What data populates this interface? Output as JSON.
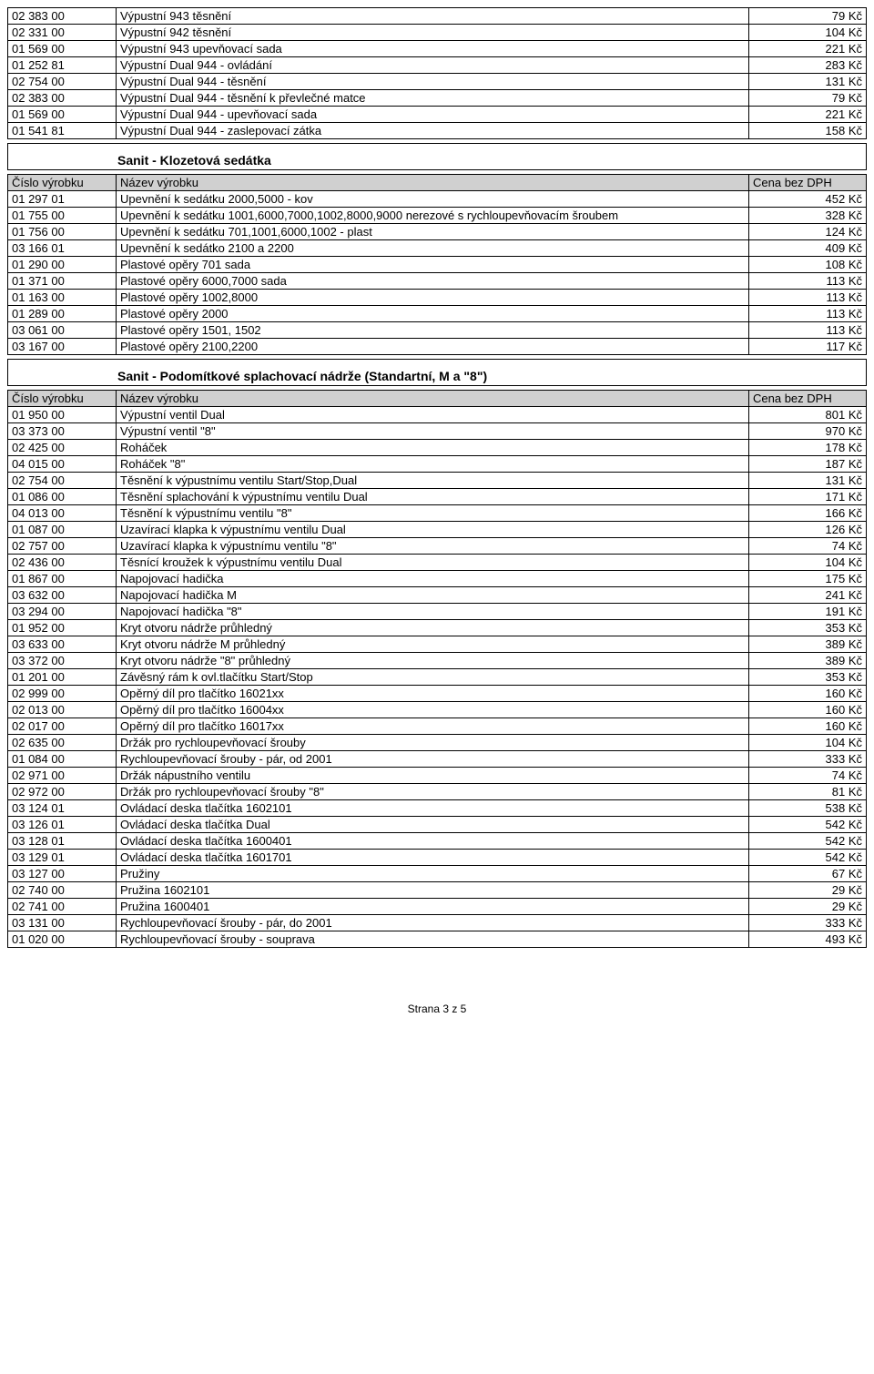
{
  "table1_rows": [
    {
      "code": "02 383 00",
      "name": "Výpustní 943 těsnění",
      "price": "79 Kč"
    },
    {
      "code": "02 331 00",
      "name": "Výpustní 942 těsnění",
      "price": "104 Kč"
    },
    {
      "code": "01 569 00",
      "name": "Výpustní 943 upevňovací sada",
      "price": "221 Kč"
    },
    {
      "code": "01 252 81",
      "name": "Výpustní Dual 944 - ovládání",
      "price": "283 Kč"
    },
    {
      "code": "02 754 00",
      "name": "Výpustní Dual 944 - těsnění",
      "price": "131 Kč"
    },
    {
      "code": "02 383 00",
      "name": "Výpustní Dual 944 - těsnění k převlečné matce",
      "price": "79 Kč"
    },
    {
      "code": "01 569 00",
      "name": "Výpustní Dual 944 - upevňovací sada",
      "price": "221 Kč"
    },
    {
      "code": "01 541 81",
      "name": "Výpustní Dual 944 - zaslepovací zátka",
      "price": "158 Kč"
    }
  ],
  "section2_title": "Sanit - Klozetová sedátka",
  "header_labels": {
    "code": "Číslo výrobku",
    "name": "Název výrobku",
    "price": "Cena bez DPH"
  },
  "table2_rows": [
    {
      "code": "01 297 01",
      "name": "Upevnění k sedátku 2000,5000 - kov",
      "price": "452 Kč"
    },
    {
      "code": "01 755 00",
      "name": "Upevnění k sedátku 1001,6000,7000,1002,8000,9000 nerezové s rychloupevňovacím šroubem",
      "price": "328 Kč"
    },
    {
      "code": "01 756 00",
      "name": "Upevnění k sedátku 701,1001,6000,1002 - plast",
      "price": "124 Kč"
    },
    {
      "code": "03 166 01",
      "name": "Upevnění k sedátko 2100 a 2200",
      "price": "409 Kč"
    },
    {
      "code": "01 290 00",
      "name": "Plastové opěry 701 sada",
      "price": "108 Kč"
    },
    {
      "code": "01 371 00",
      "name": "Plastové opěry 6000,7000 sada",
      "price": "113 Kč"
    },
    {
      "code": "01 163 00",
      "name": "Plastové opěry 1002,8000",
      "price": "113 Kč"
    },
    {
      "code": "01 289 00",
      "name": "Plastové opěry 2000",
      "price": "113 Kč"
    },
    {
      "code": "03 061 00",
      "name": "Plastové opěry 1501, 1502",
      "price": "113 Kč"
    },
    {
      "code": "03 167 00",
      "name": "Plastové opěry 2100,2200",
      "price": "117 Kč"
    }
  ],
  "section3_title": "Sanit - Podomítkové splachovací nádrže (Standartní, M a \"8\")",
  "table3_rows": [
    {
      "code": "01 950 00",
      "name": "Výpustní ventil Dual",
      "price": "801 Kč"
    },
    {
      "code": "03 373 00",
      "name": "Výpustní ventil \"8\"",
      "price": "970 Kč"
    },
    {
      "code": "02 425 00",
      "name": "Roháček",
      "price": "178 Kč"
    },
    {
      "code": "04 015 00",
      "name": "Roháček \"8\"",
      "price": "187 Kč"
    },
    {
      "code": "02 754 00",
      "name": "Těsnění k výpustnímu ventilu Start/Stop,Dual",
      "price": "131 Kč"
    },
    {
      "code": "01 086 00",
      "name": "Těsnění splachování k výpustnímu ventilu Dual",
      "price": "171 Kč"
    },
    {
      "code": "04 013 00",
      "name": "Těsnění k výpustnímu ventilu \"8\"",
      "price": "166 Kč"
    },
    {
      "code": "01 087 00",
      "name": "Uzavírací klapka k výpustnímu ventilu Dual",
      "price": "126 Kč"
    },
    {
      "code": "02 757 00",
      "name": "Uzavírací klapka k výpustnímu ventilu \"8\"",
      "price": "74 Kč"
    },
    {
      "code": "02 436 00",
      "name": "Těsnící kroužek k výpustnímu ventilu Dual",
      "price": "104 Kč"
    },
    {
      "code": "01 867 00",
      "name": "Napojovací hadička",
      "price": "175 Kč"
    },
    {
      "code": "03 632 00",
      "name": "Napojovací hadička M",
      "price": "241 Kč"
    },
    {
      "code": "03 294 00",
      "name": "Napojovací hadička \"8\"",
      "price": "191 Kč"
    },
    {
      "code": "01 952 00",
      "name": "Kryt otvoru nádrže průhledný",
      "price": "353 Kč"
    },
    {
      "code": "03 633 00",
      "name": "Kryt otvoru nádrže M průhledný",
      "price": "389 Kč"
    },
    {
      "code": "03 372 00",
      "name": "Kryt otvoru nádrže \"8\" průhledný",
      "price": "389 Kč"
    },
    {
      "code": "01 201 00",
      "name": "Závěsný rám k ovl.tlačítku Start/Stop",
      "price": "353 Kč"
    },
    {
      "code": "02 999 00",
      "name": "Opěrný díl pro tlačítko 16021xx",
      "price": "160 Kč"
    },
    {
      "code": "02 013 00",
      "name": "Opěrný díl pro tlačítko 16004xx",
      "price": "160 Kč"
    },
    {
      "code": "02 017 00",
      "name": "Opěrný díl pro tlačítko 16017xx",
      "price": "160 Kč"
    },
    {
      "code": "02 635 00",
      "name": "Držák pro rychloupevňovací šrouby",
      "price": "104 Kč"
    },
    {
      "code": "01 084 00",
      "name": "Rychloupevňovací šrouby - pár, od 2001",
      "price": "333 Kč"
    },
    {
      "code": "02 971 00",
      "name": "Držák nápustního ventilu",
      "price": "74 Kč"
    },
    {
      "code": "02 972 00",
      "name": "Držák pro rychloupevňovací šrouby \"8\"",
      "price": "81 Kč"
    },
    {
      "code": "03 124 01",
      "name": "Ovládací deska tlačítka 1602101",
      "price": "538 Kč"
    },
    {
      "code": "03 126 01",
      "name": "Ovládací deska tlačítka Dual",
      "price": "542 Kč"
    },
    {
      "code": "03 128 01",
      "name": "Ovládací deska tlačítka 1600401",
      "price": "542 Kč"
    },
    {
      "code": "03 129 01",
      "name": "Ovládací deska tlačítka 1601701",
      "price": "542 Kč"
    },
    {
      "code": "03 127 00",
      "name": "Pružiny",
      "price": "67 Kč"
    },
    {
      "code": "02 740 00",
      "name": "Pružina 1602101",
      "price": "29 Kč"
    },
    {
      "code": "02 741 00",
      "name": "Pružina 1600401",
      "price": "29 Kč"
    },
    {
      "code": "03 131 00",
      "name": "Rychloupevňovací šrouby - pár, do 2001",
      "price": "333 Kč"
    },
    {
      "code": "01 020 00",
      "name": "Rychloupevňovací šrouby - souprava",
      "price": "493 Kč"
    }
  ],
  "footer": "Strana 3 z 5"
}
